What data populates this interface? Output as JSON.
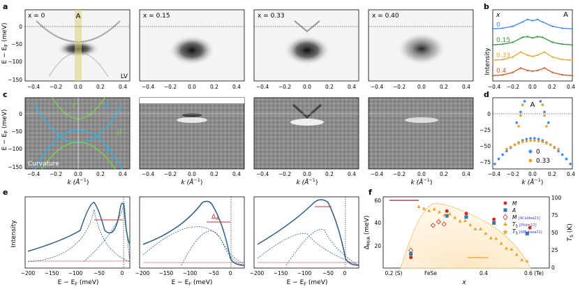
{
  "panel_letters": {
    "a": "a",
    "b": "b",
    "c": "c",
    "d": "d",
    "e": "e",
    "f": "f"
  },
  "row_a": {
    "ylabel": "E − E",
    "ylabel_sub": "F",
    "ylabel_unit": " (meV)",
    "yticks": [
      "0",
      "−50",
      "−100",
      "−150"
    ],
    "xticks": [
      "−0.4",
      "−0.2",
      "0.0",
      "0.2",
      "0.4"
    ],
    "panels": [
      {
        "label": "x = 0",
        "marker": "A",
        "corner": "LV"
      },
      {
        "label": "x = 0.15"
      },
      {
        "label": "x = 0.33"
      },
      {
        "label": "x = 0.40"
      }
    ]
  },
  "row_c": {
    "ylabel": "E − E",
    "ylabel_sub": "F",
    "ylabel_unit": " (meV)",
    "yticks": [
      "0",
      "−50",
      "−100",
      "−150"
    ],
    "xticks": [
      "−0.4",
      "−0.2",
      "0.0",
      "0.2",
      "0.4"
    ],
    "xlabel": "k (Å",
    "xlabel_exp": "−1",
    "xlabel_close": ")",
    "band_labels": {
      "epsilon": "ε",
      "delta": "δ",
      "mu": "μ",
      "zeta": "ζ"
    },
    "corner": "Curvature"
  },
  "panel_b": {
    "title_x": "x",
    "marker": "A",
    "ylabel": "Intensity",
    "xticks": [
      "−0.4",
      "−0.2",
      "0.0",
      "0.2",
      "0.4"
    ],
    "chart_data": {
      "type": "line",
      "series": [
        {
          "name": "0",
          "color": "#3a86ff",
          "offset": 3,
          "k": [
            -0.4,
            -0.3,
            -0.2,
            -0.1,
            -0.05,
            0,
            0.05,
            0.1,
            0.2,
            0.3,
            0.4
          ],
          "y": [
            0.15,
            0.2,
            0.35,
            0.7,
            0.9,
            0.8,
            0.9,
            0.7,
            0.35,
            0.2,
            0.15
          ]
        },
        {
          "name": "0.15",
          "color": "#2a9d3a",
          "offset": 2,
          "k": [
            -0.4,
            -0.3,
            -0.2,
            -0.1,
            -0.05,
            0,
            0.05,
            0.1,
            0.2,
            0.3,
            0.4
          ],
          "y": [
            0.1,
            0.15,
            0.3,
            0.7,
            0.75,
            0.65,
            0.75,
            0.7,
            0.3,
            0.15,
            0.1
          ]
        },
        {
          "name": "0.33",
          "color": "#f4a020",
          "offset": 1,
          "k": [
            -0.4,
            -0.3,
            -0.2,
            -0.12,
            -0.05,
            0,
            0.05,
            0.12,
            0.2,
            0.3,
            0.4
          ],
          "y": [
            0.1,
            0.15,
            0.35,
            0.75,
            0.5,
            0.4,
            0.5,
            0.75,
            0.35,
            0.15,
            0.1
          ]
        },
        {
          "name": "0.4",
          "color": "#e0501a",
          "offset": 0,
          "k": [
            -0.4,
            -0.3,
            -0.2,
            -0.12,
            -0.05,
            0,
            0.05,
            0.12,
            0.2,
            0.3,
            0.4
          ],
          "y": [
            0.1,
            0.15,
            0.35,
            0.7,
            0.5,
            0.45,
            0.5,
            0.7,
            0.35,
            0.15,
            0.1
          ]
        }
      ]
    }
  },
  "panel_d": {
    "marker": "A",
    "yticks": [
      "0",
      "−25",
      "−50",
      "−75"
    ],
    "xticks": [
      "−0.4",
      "−0.2",
      "0.0",
      "0.2",
      "0.4"
    ],
    "xlabel": "k (Å",
    "xlabel_exp": "−1",
    "xlabel_close": ")",
    "chart_data": {
      "type": "scatter",
      "xlim": [
        -0.4,
        0.4
      ],
      "ylim": [
        -90,
        10
      ],
      "series": [
        {
          "name": "0",
          "color": "#3a86ff",
          "x": [
            -0.38,
            -0.34,
            -0.3,
            -0.26,
            -0.22,
            -0.18,
            -0.14,
            -0.1,
            -0.06,
            -0.02,
            0.02,
            0.06,
            0.1,
            0.14,
            0.18,
            0.22,
            0.26,
            0.3,
            0.34,
            0.38,
            -0.12,
            -0.1,
            -0.08,
            0.08,
            0.1,
            0.12,
            -0.16,
            0.16
          ],
          "y": [
            -83,
            -76,
            -70,
            -65,
            -60,
            -56,
            -53,
            -50,
            -48,
            -47,
            -47,
            -48,
            -50,
            -53,
            -56,
            -60,
            -65,
            -70,
            -76,
            -83,
            -10,
            0,
            5,
            5,
            0,
            -10,
            -25,
            -25
          ]
        },
        {
          "name": "0.33",
          "color": "#f4a020",
          "x": [
            -0.26,
            -0.22,
            -0.18,
            -0.14,
            -0.1,
            -0.06,
            -0.02,
            0.02,
            0.06,
            0.1,
            0.14,
            0.18,
            0.22,
            0.26,
            -0.12,
            -0.1,
            0.1,
            0.12,
            -0.14,
            0.14
          ],
          "y": [
            -62,
            -59,
            -56,
            -54,
            -52,
            -51,
            -50,
            -50,
            -51,
            -52,
            -54,
            -56,
            -59,
            -62,
            -15,
            0,
            0,
            -15,
            -30,
            -30
          ]
        }
      ]
    }
  },
  "panel_e": {
    "ylabel": "Intensity",
    "xticks": [
      "−200",
      "−150",
      "−100",
      "−50",
      "0"
    ],
    "xlabel": "E − E",
    "xlabel_sub": "F",
    "xlabel_unit": " (meV)",
    "gap_label": "Δ",
    "gap_label_sub": "A"
  },
  "panel_f": {
    "ylabel": "Δ",
    "ylabel_sub": "M/A",
    "ylabel_unit": " (meV)",
    "y2label": "T",
    "y2label_sub": "S",
    "y2label_unit": " (K)",
    "xlabel": "x",
    "xticks": [
      "0.2 (S)",
      "FeSe",
      "0.4",
      "0.6 (Te)"
    ],
    "yticks": [
      "20",
      "40",
      "60"
    ],
    "y2ticks": [
      "0",
      "25",
      "50",
      "75",
      "100"
    ],
    "legend": [
      {
        "label": "M",
        "ref": "",
        "color": "#d62828",
        "shape": "circle"
      },
      {
        "label": "A",
        "ref": "",
        "color": "#2a7bb8",
        "shape": "square"
      },
      {
        "label": "M",
        "ref": "[ACaldea21]",
        "color": "#d62828",
        "shape": "diamond"
      },
      {
        "label": "T",
        "sub": "S",
        "ref": "[Pfolm17]",
        "color": "#f4a020",
        "shape": "triangle"
      },
      {
        "label": "T",
        "sub": "S",
        "ref": "[KMukasa21]",
        "color": "#f4a020",
        "shape": "star"
      }
    ],
    "chart_data": {
      "type": "scatter",
      "xlim": [
        0.1,
        0.7
      ],
      "ylim": [
        10,
        70
      ],
      "M": {
        "x": [
          0.2,
          0.33,
          0.4,
          0.5,
          0.63
        ],
        "y": [
          19,
          58,
          56,
          51,
          44
        ]
      },
      "A": {
        "x": [
          0.2,
          0.33,
          0.4,
          0.5,
          0.62
        ],
        "y": [
          22,
          54,
          53,
          48,
          39
        ]
      },
      "M_caldea": {
        "x": [
          0.2,
          0.28,
          0.3,
          0.32
        ],
        "y": [
          25,
          46,
          49,
          47
        ]
      }
    }
  }
}
